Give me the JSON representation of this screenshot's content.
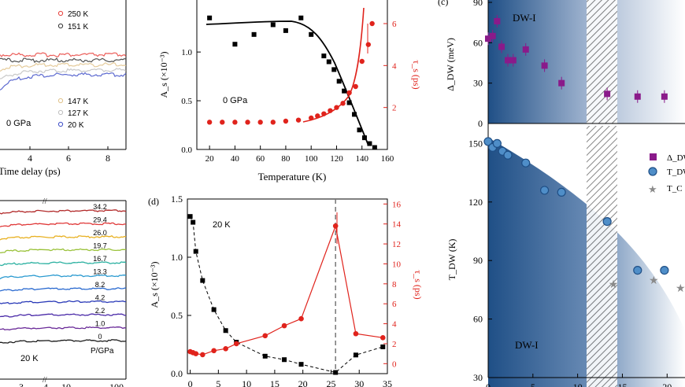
{
  "chart_data": [
    {
      "type": "line",
      "panel": "",
      "xlabel": "Time delay (ps)",
      "xlim": [
        -1,
        9.5
      ],
      "x_ticks": [
        "4",
        "6",
        "8"
      ],
      "condition_label": "0 GPa",
      "series": [
        {
          "name": "250 K",
          "color": "#e8413c",
          "level": 0.86
        },
        {
          "name": "151 K",
          "color": "#333333",
          "level": 0.81
        },
        {
          "name": "147 K",
          "color": "#e0c28a",
          "level": 0.77
        },
        {
          "name": "127 K",
          "color": "#bfbfbf",
          "level": 0.72
        },
        {
          "name": "20 K",
          "color": "#3f4fc8",
          "level": 0.68
        }
      ]
    },
    {
      "type": "scatter",
      "panel": "",
      "xlabel": "Temperature  (K)",
      "ylabel": "A_s (×10⁻³)",
      "ylabel_right": "τ_s (ps)",
      "xlim": [
        10,
        160
      ],
      "ylim": [
        0,
        1.55
      ],
      "ylim_right": [
        0,
        7.2
      ],
      "x_ticks": [
        20,
        40,
        60,
        80,
        100,
        120,
        140,
        160
      ],
      "y_ticks": [
        "0.0",
        "0.5",
        "1.0"
      ],
      "y_ticks_right": [
        "2",
        "4",
        "6"
      ],
      "condition_label": "0 GPa",
      "series": [
        {
          "name": "A_s",
          "color": "#000000",
          "x": [
            20,
            40,
            55,
            70,
            80,
            92,
            100,
            110,
            114,
            118,
            122,
            126,
            130,
            134,
            138,
            142,
            146,
            150
          ],
          "y": [
            1.35,
            1.08,
            1.18,
            1.28,
            1.22,
            1.35,
            1.18,
            0.96,
            0.9,
            0.82,
            0.7,
            0.6,
            0.48,
            0.36,
            0.2,
            0.12,
            0.06,
            0.02
          ]
        },
        {
          "name": "τ_s",
          "color": "#e0231c",
          "x": [
            20,
            30,
            40,
            50,
            60,
            70,
            80,
            90,
            100,
            105,
            110,
            115,
            120,
            125,
            130,
            135,
            140,
            145,
            148
          ],
          "y": [
            1.3,
            1.3,
            1.3,
            1.3,
            1.3,
            1.3,
            1.35,
            1.4,
            1.5,
            1.6,
            1.7,
            1.85,
            2.0,
            2.2,
            2.7,
            3.0,
            4.2,
            5.0,
            6.0
          ]
        }
      ]
    },
    {
      "type": "line",
      "panel": "",
      "xlabel": "",
      "x_ticks": [
        "3",
        "4",
        "10",
        "100"
      ],
      "legend_title": "P/GPa",
      "condition_label": "20 K",
      "series": [
        {
          "name": "34.2",
          "color": "#b22a2a"
        },
        {
          "name": "29.4",
          "color": "#e03a3a"
        },
        {
          "name": "26.0",
          "color": "#e8b020"
        },
        {
          "name": "19.7",
          "color": "#9ac23a"
        },
        {
          "name": "16.7",
          "color": "#2ab0a0"
        },
        {
          "name": "13.3",
          "color": "#2a9ad0"
        },
        {
          "name": "8.2",
          "color": "#2a6ad0"
        },
        {
          "name": "4.2",
          "color": "#2a3ab8"
        },
        {
          "name": "2.2",
          "color": "#4a2aa8"
        },
        {
          "name": "1.0",
          "color": "#6a2a98"
        },
        {
          "name": "0",
          "color": "#1a1a1a"
        }
      ]
    },
    {
      "type": "line",
      "panel": "(d)",
      "xlabel": "",
      "ylabel": "A_s (×10⁻³)",
      "ylabel_right": "τ_s (ps)",
      "xlim": [
        -0.5,
        35
      ],
      "ylim": [
        0,
        1.5
      ],
      "ylim_right": [
        -1,
        16.5
      ],
      "x_ticks": [
        0,
        5,
        10,
        15,
        20,
        25,
        30,
        35
      ],
      "y_ticks": [
        "0.0",
        "0.5",
        "1.0",
        "1.5"
      ],
      "y_ticks_right": [
        0,
        2,
        4,
        6,
        8,
        10,
        12,
        14,
        16
      ],
      "condition_label": "20 K",
      "vline_x": 25.8,
      "series": [
        {
          "name": "A_s",
          "color": "#000000",
          "x": [
            0,
            0.5,
            1.0,
            2.2,
            4.2,
            6.3,
            8.2,
            13.3,
            16.7,
            19.7,
            25.8,
            29.4,
            34.2
          ],
          "y": [
            1.35,
            1.3,
            1.05,
            0.8,
            0.55,
            0.37,
            0.27,
            0.15,
            0.12,
            0.08,
            0.01,
            0.16,
            0.23
          ]
        },
        {
          "name": "τ_s",
          "color": "#e0231c",
          "x": [
            0,
            0.5,
            1.0,
            2.2,
            4.2,
            6.3,
            8.2,
            13.3,
            16.7,
            19.7,
            25.8,
            29.4,
            34.2
          ],
          "y": [
            1.2,
            1.1,
            1.0,
            0.9,
            1.3,
            1.5,
            2.0,
            2.8,
            3.8,
            4.5,
            13.8,
            3.0,
            2.6
          ]
        }
      ]
    },
    {
      "type": "scatter",
      "panel": "(c)",
      "ylabel": "Δ_DW (meV)",
      "ylim": [
        0,
        90
      ],
      "y_ticks": [
        0,
        30,
        60,
        90
      ],
      "region_label": "DW-I",
      "series": [
        {
          "name": "Δ_DW",
          "color": "#8a1a8a",
          "x": [
            0,
            0.5,
            1.0,
            1.5,
            2.2,
            2.8,
            4.2,
            6.3,
            8.2,
            13.3,
            16.7,
            19.7
          ],
          "y": [
            63,
            65,
            76,
            57,
            47,
            47,
            55,
            43,
            30,
            22,
            20,
            20
          ]
        }
      ]
    },
    {
      "type": "scatter",
      "panel": "",
      "xlabel": "",
      "ylabel": "T_DW (K)",
      "xlim": [
        0,
        22
      ],
      "ylim": [
        30,
        155
      ],
      "x_ticks": [
        0,
        5,
        10,
        15,
        20
      ],
      "y_ticks": [
        30,
        60,
        90,
        120,
        150
      ],
      "region_label": "DW-I",
      "legend": [
        "Δ_DW",
        "T_DW",
        "T_C"
      ],
      "series": [
        {
          "name": "T_DW",
          "color": "#4f8ec8",
          "x": [
            0,
            0.5,
            1.0,
            1.6,
            2.2,
            4.2,
            6.3,
            8.2,
            13.3,
            16.7,
            19.7
          ],
          "y": [
            151,
            148,
            150,
            146,
            144,
            140,
            126,
            125,
            110,
            85,
            85
          ]
        },
        {
          "name": "T_C",
          "color": "#8a8a8a",
          "x": [
            14.0,
            18.5,
            21.5
          ],
          "y": [
            78,
            80,
            76
          ]
        }
      ]
    }
  ]
}
